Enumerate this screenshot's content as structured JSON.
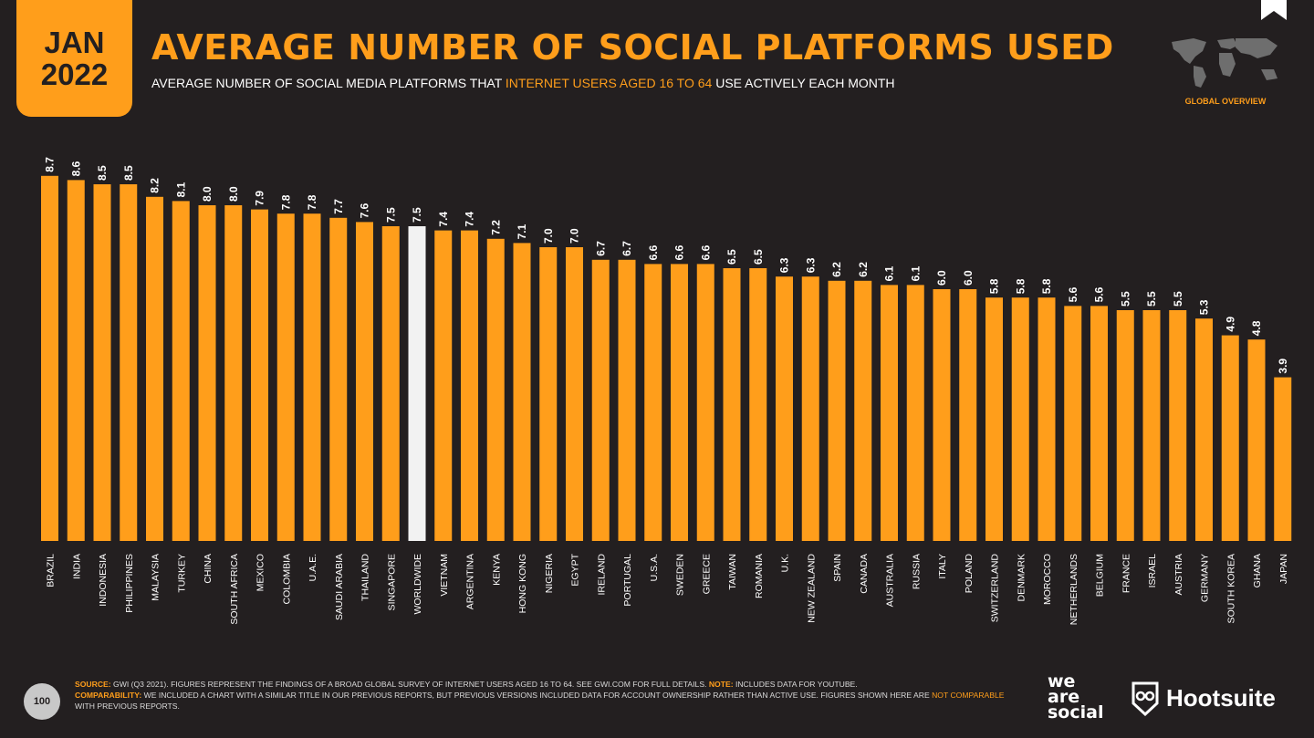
{
  "header": {
    "date_month": "JAN",
    "date_year": "2022",
    "title": "AVERAGE NUMBER OF SOCIAL PLATFORMS USED",
    "subtitle_pre": "AVERAGE NUMBER OF SOCIAL MEDIA PLATFORMS THAT ",
    "subtitle_highlight": "INTERNET USERS AGED 16 TO 64",
    "subtitle_post": " USE ACTIVELY EACH MONTH",
    "section_label": "GLOBAL OVERVIEW",
    "section_icon": "world-map-icon",
    "corner_icon": "bookmark-icon"
  },
  "chart_data": {
    "type": "bar",
    "orientation": "vertical",
    "ylim": [
      0,
      9
    ],
    "grid": false,
    "legend": "none",
    "categories": [
      "BRAZIL",
      "INDIA",
      "INDONESIA",
      "PHILIPPINES",
      "MALAYSIA",
      "TURKEY",
      "CHINA",
      "SOUTH AFRICA",
      "MEXICO",
      "COLOMBIA",
      "U.A.E.",
      "SAUDI ARABIA",
      "THAILAND",
      "SINGAPORE",
      "WORLDWIDE",
      "VIETNAM",
      "ARGENTINA",
      "KENYA",
      "HONG KONG",
      "NIGERIA",
      "EGYPT",
      "IRELAND",
      "PORTUGAL",
      "U.S.A.",
      "SWEDEN",
      "GREECE",
      "TAIWAN",
      "ROMANIA",
      "U.K.",
      "NEW ZEALAND",
      "SPAIN",
      "CANADA",
      "AUSTRALIA",
      "RUSSIA",
      "ITALY",
      "POLAND",
      "SWITZERLAND",
      "DENMARK",
      "MOROCCO",
      "NETHERLANDS",
      "BELGIUM",
      "FRANCE",
      "ISRAEL",
      "AUSTRIA",
      "GERMANY",
      "SOUTH KOREA",
      "GHANA",
      "JAPAN"
    ],
    "values": [
      8.7,
      8.6,
      8.5,
      8.5,
      8.2,
      8.1,
      8.0,
      8.0,
      7.9,
      7.8,
      7.8,
      7.7,
      7.6,
      7.5,
      7.5,
      7.4,
      7.4,
      7.2,
      7.1,
      7.0,
      7.0,
      6.7,
      6.7,
      6.6,
      6.6,
      6.6,
      6.5,
      6.5,
      6.3,
      6.3,
      6.2,
      6.2,
      6.1,
      6.1,
      6.0,
      6.0,
      5.8,
      5.8,
      5.8,
      5.6,
      5.6,
      5.5,
      5.5,
      5.5,
      5.3,
      4.9,
      4.8,
      3.9
    ],
    "value_labels": [
      "8.7",
      "8.6",
      "8.5",
      "8.5",
      "8.2",
      "8.1",
      "8.0",
      "8.0",
      "7.9",
      "7.8",
      "7.8",
      "7.7",
      "7.6",
      "7.5",
      "7.5",
      "7.4",
      "7.4",
      "7.2",
      "7.1",
      "7.0",
      "7.0",
      "6.7",
      "6.7",
      "6.6",
      "6.6",
      "6.6",
      "6.5",
      "6.5",
      "6.3",
      "6.3",
      "6.2",
      "6.2",
      "6.1",
      "6.1",
      "6.0",
      "6.0",
      "5.8",
      "5.8",
      "5.8",
      "5.6",
      "5.6",
      "5.5",
      "5.5",
      "5.5",
      "5.3",
      "4.9",
      "4.8",
      "3.9"
    ],
    "highlight_category": "WORLDWIDE",
    "colors": {
      "bar": "#ff9e1b",
      "highlight": "#f2f2f2",
      "label": "#ffffff"
    }
  },
  "footer": {
    "page_number": "100",
    "source_label": "SOURCE:",
    "source_text": " GWI (Q3 2021). FIGURES REPRESENT THE FINDINGS OF A BROAD GLOBAL SURVEY OF INTERNET USERS AGED 16 TO 64. SEE GWI.COM FOR FULL DETAILS. ",
    "note_label": "NOTE:",
    "note_text": " INCLUDES DATA FOR YOUTUBE.",
    "comparability_label": "COMPARABILITY:",
    "comparability_text": " WE INCLUDED A CHART WITH A SIMILAR TITLE IN OUR PREVIOUS REPORTS, BUT PREVIOUS VERSIONS INCLUDED DATA FOR ACCOUNT OWNERSHIP RATHER THAN ACTIVE USE. FIGURES SHOWN HERE ARE ",
    "not_comparable": "NOT COMPARABLE",
    "comparability_end": " WITH PREVIOUS REPORTS.",
    "logo_line1": "we",
    "logo_line2": "are",
    "logo_line3": "social",
    "logo_hootsuite": "Hootsuite",
    "hootsuite_icon": "owl-icon"
  },
  "colors": {
    "background": "#231f20",
    "accent": "#ff9e1b"
  }
}
